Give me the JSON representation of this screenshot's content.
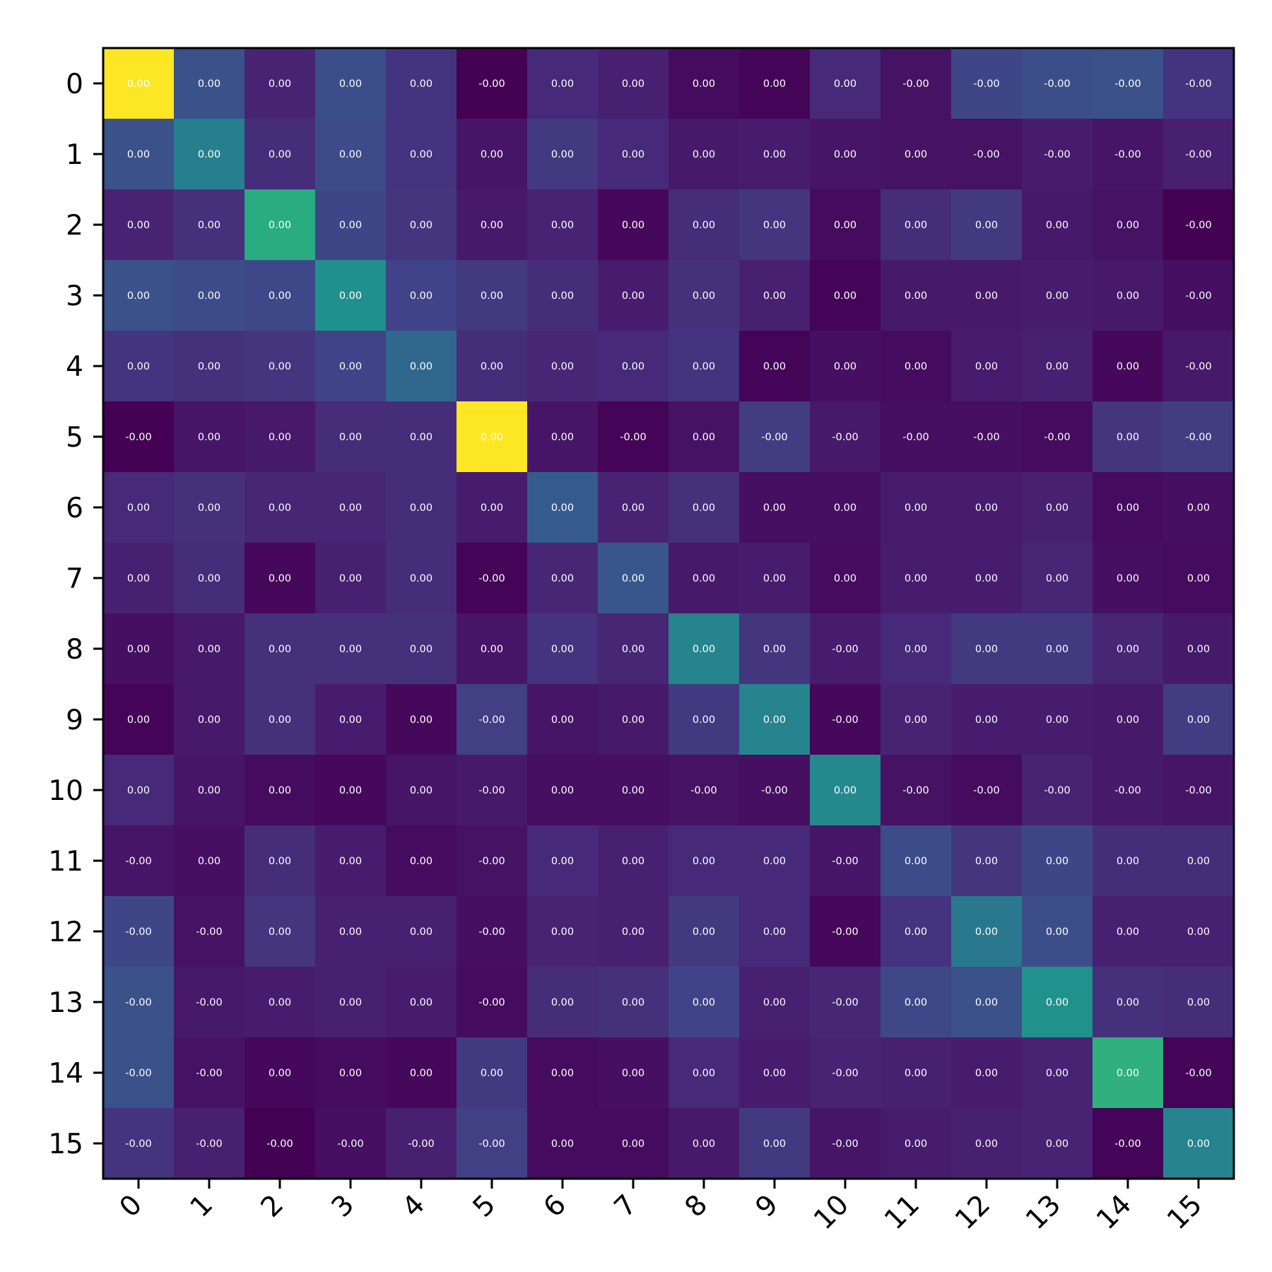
{
  "chart_data": {
    "type": "heatmap",
    "title": "",
    "xlabel": "",
    "ylabel": "",
    "colormap": "viridis",
    "x_categories": [
      "0",
      "1",
      "2",
      "3",
      "4",
      "5",
      "6",
      "7",
      "8",
      "9",
      "10",
      "11",
      "12",
      "13",
      "14",
      "15"
    ],
    "y_categories": [
      "0",
      "1",
      "2",
      "3",
      "4",
      "5",
      "6",
      "7",
      "8",
      "9",
      "10",
      "11",
      "12",
      "13",
      "14",
      "15"
    ],
    "values": [
      [
        1.0,
        0.25,
        0.1,
        0.24,
        0.15,
        0.0,
        0.12,
        0.09,
        0.03,
        0.01,
        0.12,
        0.05,
        0.21,
        0.24,
        0.25,
        0.15
      ],
      [
        0.25,
        0.43,
        0.13,
        0.23,
        0.15,
        0.06,
        0.17,
        0.12,
        0.07,
        0.08,
        0.06,
        0.05,
        0.05,
        0.08,
        0.06,
        0.09
      ],
      [
        0.1,
        0.14,
        0.62,
        0.21,
        0.16,
        0.07,
        0.1,
        0.02,
        0.13,
        0.16,
        0.03,
        0.13,
        0.17,
        0.07,
        0.05,
        0.0
      ],
      [
        0.25,
        0.23,
        0.22,
        0.5,
        0.2,
        0.17,
        0.13,
        0.08,
        0.14,
        0.09,
        0.01,
        0.07,
        0.07,
        0.08,
        0.07,
        0.04
      ],
      [
        0.15,
        0.14,
        0.16,
        0.2,
        0.34,
        0.13,
        0.11,
        0.12,
        0.15,
        0.01,
        0.04,
        0.03,
        0.08,
        0.09,
        0.02,
        0.07
      ],
      [
        0.0,
        0.06,
        0.07,
        0.13,
        0.13,
        1.0,
        0.06,
        0.01,
        0.05,
        0.18,
        0.07,
        0.04,
        0.04,
        0.03,
        0.16,
        0.18
      ],
      [
        0.12,
        0.14,
        0.11,
        0.11,
        0.13,
        0.08,
        0.29,
        0.1,
        0.14,
        0.04,
        0.04,
        0.08,
        0.08,
        0.09,
        0.03,
        0.04
      ],
      [
        0.09,
        0.13,
        0.02,
        0.09,
        0.13,
        0.01,
        0.11,
        0.27,
        0.07,
        0.08,
        0.03,
        0.08,
        0.08,
        0.11,
        0.04,
        0.03
      ],
      [
        0.04,
        0.07,
        0.14,
        0.14,
        0.14,
        0.06,
        0.15,
        0.11,
        0.45,
        0.16,
        0.08,
        0.12,
        0.17,
        0.17,
        0.11,
        0.07
      ],
      [
        0.01,
        0.07,
        0.14,
        0.08,
        0.02,
        0.19,
        0.06,
        0.07,
        0.17,
        0.45,
        0.02,
        0.1,
        0.08,
        0.08,
        0.07,
        0.18
      ],
      [
        0.12,
        0.06,
        0.03,
        0.02,
        0.06,
        0.07,
        0.04,
        0.04,
        0.05,
        0.04,
        0.47,
        0.05,
        0.03,
        0.1,
        0.07,
        0.06
      ],
      [
        0.06,
        0.04,
        0.13,
        0.08,
        0.03,
        0.05,
        0.12,
        0.09,
        0.12,
        0.12,
        0.06,
        0.23,
        0.16,
        0.21,
        0.13,
        0.13
      ],
      [
        0.21,
        0.05,
        0.16,
        0.09,
        0.09,
        0.04,
        0.1,
        0.09,
        0.17,
        0.12,
        0.02,
        0.15,
        0.4,
        0.24,
        0.09,
        0.09
      ],
      [
        0.25,
        0.07,
        0.08,
        0.09,
        0.08,
        0.03,
        0.13,
        0.14,
        0.2,
        0.09,
        0.11,
        0.22,
        0.25,
        0.51,
        0.14,
        0.13
      ],
      [
        0.25,
        0.05,
        0.02,
        0.03,
        0.02,
        0.17,
        0.03,
        0.04,
        0.12,
        0.08,
        0.1,
        0.09,
        0.08,
        0.1,
        0.64,
        0.01
      ],
      [
        0.15,
        0.09,
        0.0,
        0.04,
        0.09,
        0.19,
        0.03,
        0.03,
        0.07,
        0.17,
        0.06,
        0.08,
        0.09,
        0.1,
        0.01,
        0.45
      ]
    ],
    "labels": [
      [
        "0.00",
        "0.00",
        "0.00",
        "0.00",
        "0.00",
        "-0.00",
        "0.00",
        "0.00",
        "0.00",
        "0.00",
        "0.00",
        "-0.00",
        "-0.00",
        "-0.00",
        "-0.00",
        "-0.00"
      ],
      [
        "0.00",
        "0.00",
        "0.00",
        "0.00",
        "0.00",
        "0.00",
        "0.00",
        "0.00",
        "0.00",
        "0.00",
        "0.00",
        "0.00",
        "-0.00",
        "-0.00",
        "-0.00",
        "-0.00"
      ],
      [
        "0.00",
        "0.00",
        "0.00",
        "0.00",
        "0.00",
        "0.00",
        "0.00",
        "0.00",
        "0.00",
        "0.00",
        "0.00",
        "0.00",
        "0.00",
        "0.00",
        "0.00",
        "-0.00"
      ],
      [
        "0.00",
        "0.00",
        "0.00",
        "0.00",
        "0.00",
        "0.00",
        "0.00",
        "0.00",
        "0.00",
        "0.00",
        "0.00",
        "0.00",
        "0.00",
        "0.00",
        "0.00",
        "-0.00"
      ],
      [
        "0.00",
        "0.00",
        "0.00",
        "0.00",
        "0.00",
        "0.00",
        "0.00",
        "0.00",
        "0.00",
        "0.00",
        "0.00",
        "0.00",
        "0.00",
        "0.00",
        "0.00",
        "-0.00"
      ],
      [
        "-0.00",
        "0.00",
        "0.00",
        "0.00",
        "0.00",
        "0.00",
        "0.00",
        "-0.00",
        "0.00",
        "-0.00",
        "-0.00",
        "-0.00",
        "-0.00",
        "-0.00",
        "0.00",
        "-0.00"
      ],
      [
        "0.00",
        "0.00",
        "0.00",
        "0.00",
        "0.00",
        "0.00",
        "0.00",
        "0.00",
        "0.00",
        "0.00",
        "0.00",
        "0.00",
        "0.00",
        "0.00",
        "0.00",
        "0.00"
      ],
      [
        "0.00",
        "0.00",
        "0.00",
        "0.00",
        "0.00",
        "-0.00",
        "0.00",
        "0.00",
        "0.00",
        "0.00",
        "0.00",
        "0.00",
        "0.00",
        "0.00",
        "0.00",
        "0.00"
      ],
      [
        "0.00",
        "0.00",
        "0.00",
        "0.00",
        "0.00",
        "0.00",
        "0.00",
        "0.00",
        "0.00",
        "0.00",
        "-0.00",
        "0.00",
        "0.00",
        "0.00",
        "0.00",
        "0.00"
      ],
      [
        "0.00",
        "0.00",
        "0.00",
        "0.00",
        "0.00",
        "-0.00",
        "0.00",
        "0.00",
        "0.00",
        "0.00",
        "-0.00",
        "0.00",
        "0.00",
        "0.00",
        "0.00",
        "0.00"
      ],
      [
        "0.00",
        "0.00",
        "0.00",
        "0.00",
        "0.00",
        "-0.00",
        "0.00",
        "0.00",
        "-0.00",
        "-0.00",
        "0.00",
        "-0.00",
        "-0.00",
        "-0.00",
        "-0.00",
        "-0.00"
      ],
      [
        "-0.00",
        "0.00",
        "0.00",
        "0.00",
        "0.00",
        "-0.00",
        "0.00",
        "0.00",
        "0.00",
        "0.00",
        "-0.00",
        "0.00",
        "0.00",
        "0.00",
        "0.00",
        "0.00"
      ],
      [
        "-0.00",
        "-0.00",
        "0.00",
        "0.00",
        "0.00",
        "-0.00",
        "0.00",
        "0.00",
        "0.00",
        "0.00",
        "-0.00",
        "0.00",
        "0.00",
        "0.00",
        "0.00",
        "0.00"
      ],
      [
        "-0.00",
        "-0.00",
        "0.00",
        "0.00",
        "0.00",
        "-0.00",
        "0.00",
        "0.00",
        "0.00",
        "0.00",
        "-0.00",
        "0.00",
        "0.00",
        "0.00",
        "0.00",
        "0.00"
      ],
      [
        "-0.00",
        "-0.00",
        "0.00",
        "0.00",
        "0.00",
        "0.00",
        "0.00",
        "0.00",
        "0.00",
        "0.00",
        "-0.00",
        "0.00",
        "0.00",
        "0.00",
        "0.00",
        "-0.00"
      ],
      [
        "-0.00",
        "-0.00",
        "-0.00",
        "-0.00",
        "-0.00",
        "-0.00",
        "0.00",
        "0.00",
        "0.00",
        "0.00",
        "-0.00",
        "0.00",
        "0.00",
        "0.00",
        "-0.00",
        "0.00"
      ]
    ],
    "grid": false,
    "legend": "none",
    "colorbar": false
  }
}
